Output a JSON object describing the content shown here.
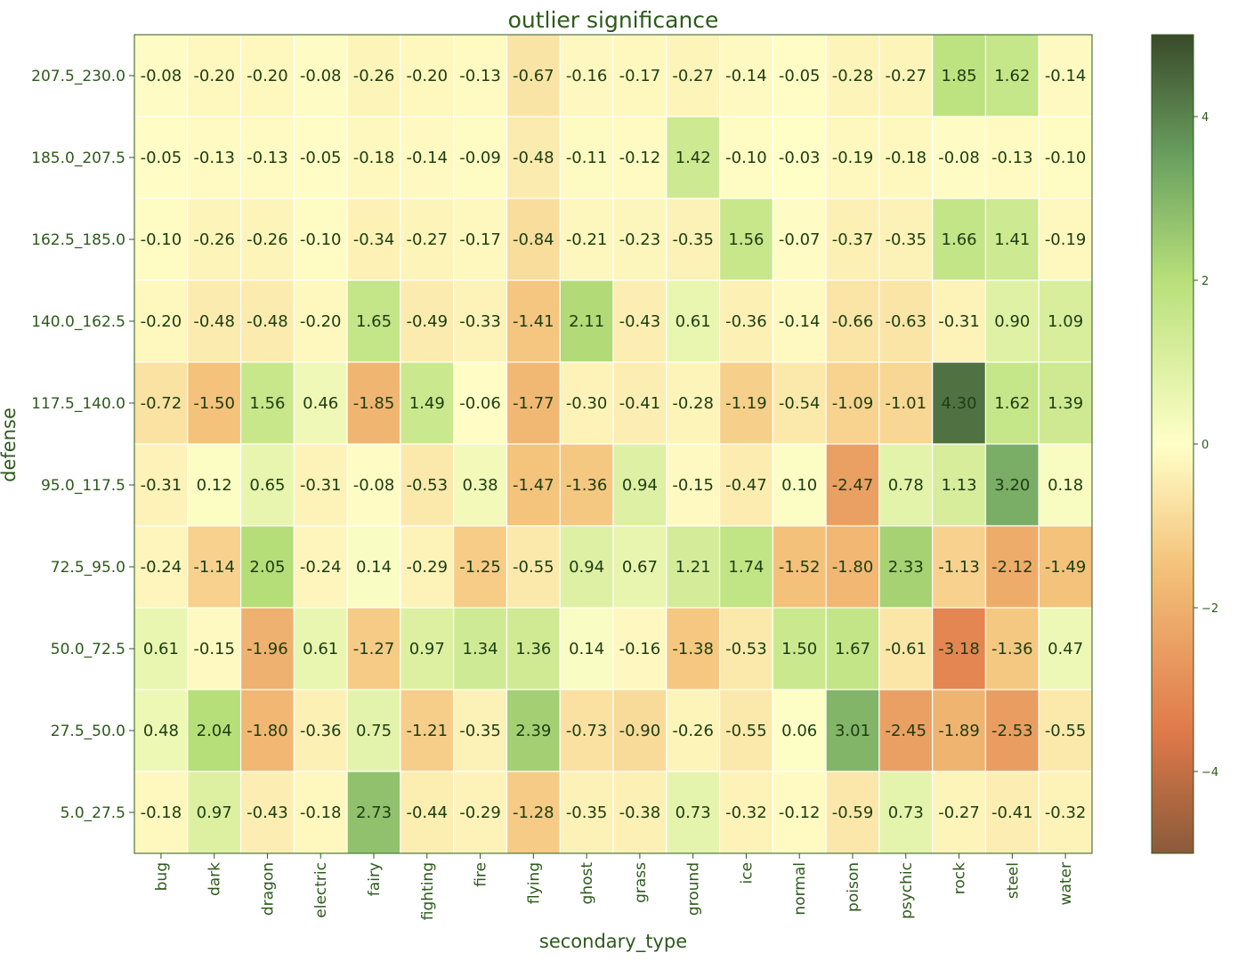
{
  "chart_data": {
    "type": "heatmap",
    "title": "outlier significance",
    "xlabel": "secondary_type",
    "ylabel": "defense",
    "x_categories": [
      "bug",
      "dark",
      "dragon",
      "electric",
      "fairy",
      "fighting",
      "fire",
      "flying",
      "ghost",
      "grass",
      "ground",
      "ice",
      "normal",
      "poison",
      "psychic",
      "rock",
      "steel",
      "water"
    ],
    "y_categories": [
      "207.5_230.0",
      "185.0_207.5",
      "162.5_185.0",
      "140.0_162.5",
      "117.5_140.0",
      "95.0_117.5",
      "72.5_95.0",
      "50.0_72.5",
      "27.5_50.0",
      "5.0_27.5"
    ],
    "values": [
      [
        -0.08,
        -0.2,
        -0.2,
        -0.08,
        -0.26,
        -0.2,
        -0.13,
        -0.67,
        -0.16,
        -0.17,
        -0.27,
        -0.14,
        -0.05,
        -0.28,
        -0.27,
        1.85,
        1.62,
        -0.14
      ],
      [
        -0.05,
        -0.13,
        -0.13,
        -0.05,
        -0.18,
        -0.14,
        -0.09,
        -0.48,
        -0.11,
        -0.12,
        1.42,
        -0.1,
        -0.03,
        -0.19,
        -0.18,
        -0.08,
        -0.13,
        -0.1
      ],
      [
        -0.1,
        -0.26,
        -0.26,
        -0.1,
        -0.34,
        -0.27,
        -0.17,
        -0.84,
        -0.21,
        -0.23,
        -0.35,
        1.56,
        -0.07,
        -0.37,
        -0.35,
        1.66,
        1.41,
        -0.19
      ],
      [
        -0.2,
        -0.48,
        -0.48,
        -0.2,
        1.65,
        -0.49,
        -0.33,
        -1.41,
        2.11,
        -0.43,
        0.61,
        -0.36,
        -0.14,
        -0.66,
        -0.63,
        -0.31,
        0.9,
        1.09
      ],
      [
        -0.72,
        -1.5,
        1.56,
        0.46,
        -1.85,
        1.49,
        -0.06,
        -1.77,
        -0.3,
        -0.41,
        -0.28,
        -1.19,
        -0.54,
        -1.09,
        -1.01,
        4.3,
        1.62,
        1.39
      ],
      [
        -0.31,
        0.12,
        0.65,
        -0.31,
        -0.08,
        -0.53,
        0.38,
        -1.47,
        -1.36,
        0.94,
        -0.15,
        -0.47,
        0.1,
        -2.47,
        0.78,
        1.13,
        3.2,
        0.18
      ],
      [
        -0.24,
        -1.14,
        2.05,
        -0.24,
        0.14,
        -0.29,
        -1.25,
        -0.55,
        0.94,
        0.67,
        1.21,
        1.74,
        -1.52,
        -1.8,
        2.33,
        -1.13,
        -2.12,
        -1.49
      ],
      [
        0.61,
        -0.15,
        -1.96,
        0.61,
        -1.27,
        0.97,
        1.34,
        1.36,
        0.14,
        -0.16,
        -1.38,
        -0.53,
        1.5,
        1.67,
        -0.61,
        -3.18,
        -1.36,
        0.47
      ],
      [
        0.48,
        2.04,
        -1.8,
        -0.36,
        0.75,
        -1.21,
        -0.35,
        2.39,
        -0.73,
        -0.9,
        -0.26,
        -0.55,
        0.06,
        3.01,
        -2.45,
        -1.89,
        -2.53,
        -0.55
      ],
      [
        -0.18,
        0.97,
        -0.43,
        -0.18,
        2.73,
        -0.44,
        -0.29,
        -1.28,
        -0.35,
        -0.38,
        0.73,
        -0.32,
        -0.12,
        -0.59,
        0.73,
        -0.27,
        -0.41,
        -0.32
      ]
    ],
    "colorbar": {
      "range": [
        -5,
        5
      ],
      "ticks": [
        4,
        2,
        0,
        -2,
        -4
      ],
      "tick_labels": [
        "4",
        "2",
        "0",
        "−2",
        "−4"
      ]
    },
    "colormap_stops": [
      {
        "v": -5,
        "color": "#8a5a3a"
      },
      {
        "v": -3.5,
        "color": "#e07a4a"
      },
      {
        "v": -1.5,
        "color": "#f4c27a"
      },
      {
        "v": 0,
        "color": "#ffffc8"
      },
      {
        "v": 2,
        "color": "#b8e07a"
      },
      {
        "v": 3.5,
        "color": "#6aa060"
      },
      {
        "v": 5,
        "color": "#3a4a2a"
      }
    ]
  }
}
